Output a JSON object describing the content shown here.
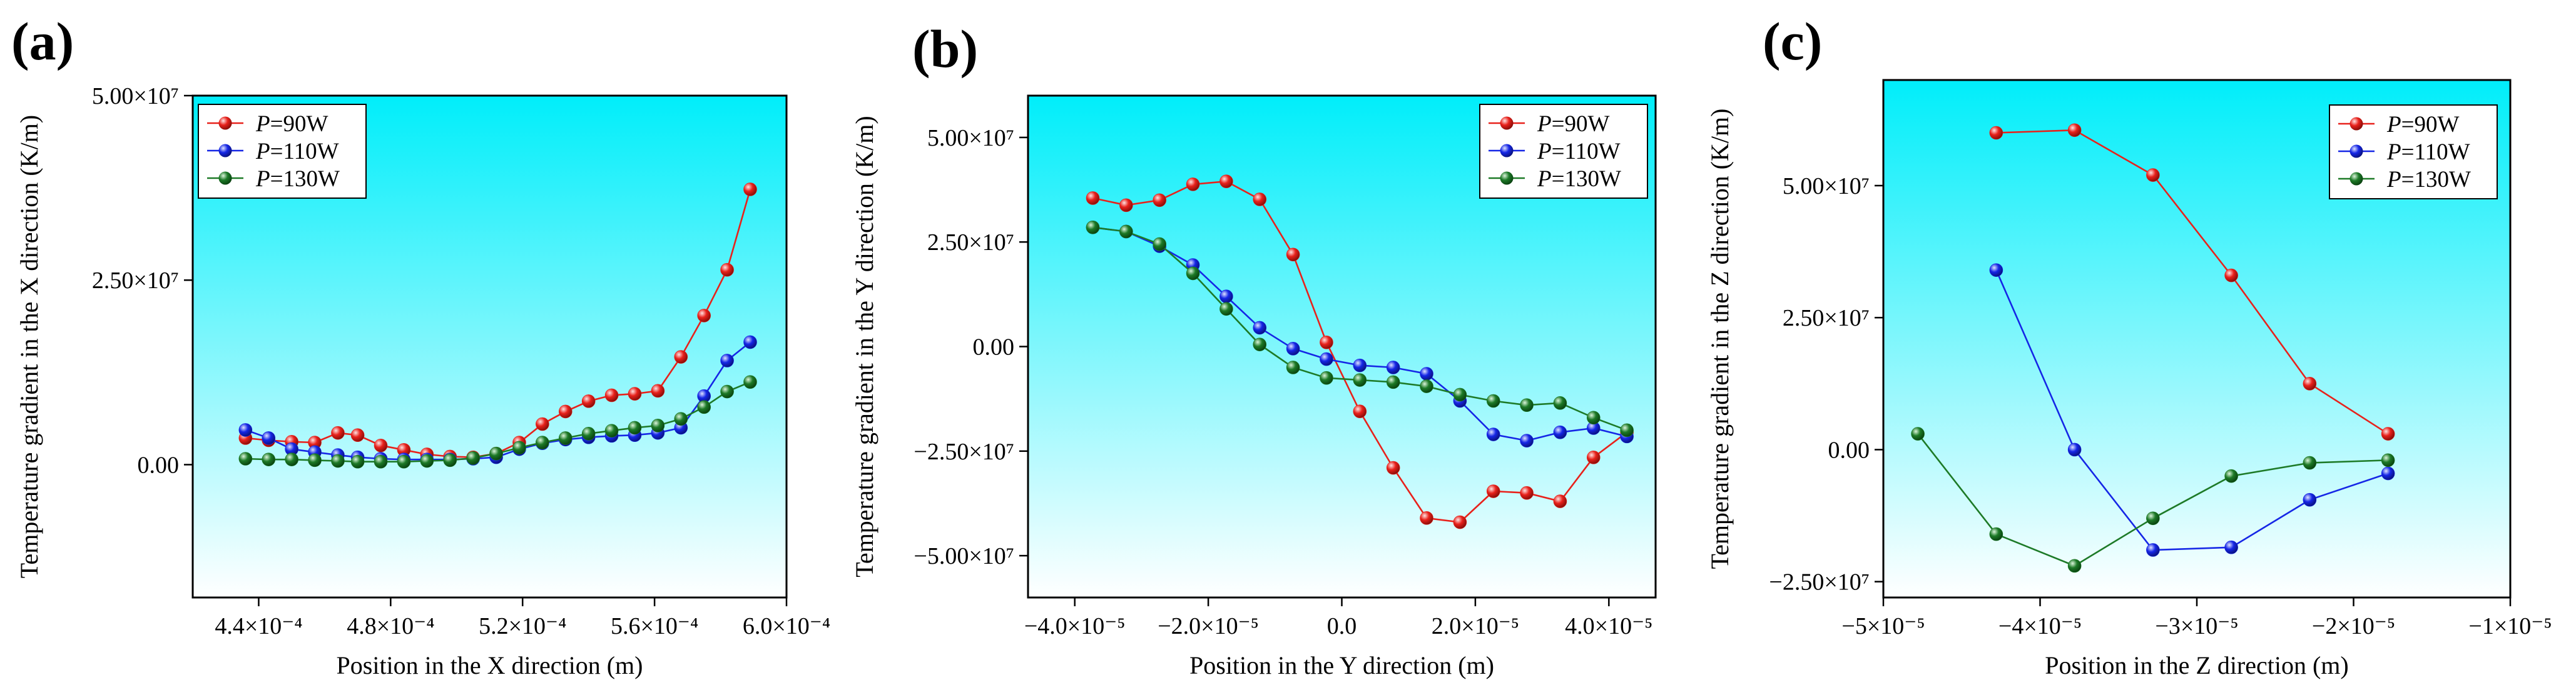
{
  "chart_data": [
    {
      "panel_label": "(a)",
      "type": "line",
      "title": "",
      "xlabel": "Position in the X direction (m)",
      "ylabel": "Temperature gradient in the X direction (K/m)",
      "xlim": [
        0.00042,
        0.0006
      ],
      "ylim": [
        -18000000,
        50000000
      ],
      "xticks": [
        0.00044,
        0.00048,
        0.00052,
        0.00056,
        0.0006
      ],
      "xtick_labels": [
        "4.4×10⁻⁴",
        "4.8×10⁻⁴",
        "5.2×10⁻⁴",
        "5.6×10⁻⁴",
        "6.0×10⁻⁴"
      ],
      "yticks": [
        0,
        25000000,
        50000000
      ],
      "ytick_labels": [
        "0.00",
        "2.50×10⁷",
        "5.00×10⁷"
      ],
      "legend_position": "top-left",
      "series": [
        {
          "name": "P=90W",
          "name_italic": "P",
          "name_rest": "=90W",
          "color": "#e8211b",
          "x": [
            0.000436,
            0.000443,
            0.00045,
            0.000457,
            0.000464,
            0.00047,
            0.000477,
            0.000484,
            0.000491,
            0.000498,
            0.000505,
            0.000512,
            0.000519,
            0.000526,
            0.000533,
            0.00054,
            0.000547,
            0.000554,
            0.000561,
            0.000568,
            0.000575,
            0.000582,
            0.000589
          ],
          "values": [
            3600000,
            3300000,
            3100000,
            3000000,
            4300000,
            4000000,
            2600000,
            2000000,
            1400000,
            1100000,
            1000000,
            1500000,
            3000000,
            5500000,
            7200000,
            8600000,
            9400000,
            9600000,
            10000000,
            14600000,
            20200000,
            26400000,
            37300000
          ]
        },
        {
          "name": "P=110W",
          "name_italic": "P",
          "name_rest": "=110W",
          "color": "#1526e6",
          "x": [
            0.000436,
            0.000443,
            0.00045,
            0.000457,
            0.000464,
            0.00047,
            0.000477,
            0.000484,
            0.000491,
            0.000498,
            0.000505,
            0.000512,
            0.000519,
            0.000526,
            0.000533,
            0.00054,
            0.000547,
            0.000554,
            0.000561,
            0.000568,
            0.000575,
            0.000582,
            0.000589
          ],
          "values": [
            4700000,
            3600000,
            2100000,
            1700000,
            1300000,
            1000000,
            800000,
            700000,
            700000,
            700000,
            800000,
            1000000,
            2100000,
            2900000,
            3400000,
            3700000,
            3900000,
            4000000,
            4300000,
            5000000,
            9300000,
            14100000,
            16600000
          ]
        },
        {
          "name": "P=130W",
          "name_italic": "P",
          "name_rest": "=130W",
          "color": "#1d7a27",
          "x": [
            0.000436,
            0.000443,
            0.00045,
            0.000457,
            0.000464,
            0.00047,
            0.000477,
            0.000484,
            0.000491,
            0.000498,
            0.000505,
            0.000512,
            0.000519,
            0.000526,
            0.000533,
            0.00054,
            0.000547,
            0.000554,
            0.000561,
            0.000568,
            0.000575,
            0.000582,
            0.000589
          ],
          "values": [
            800000,
            700000,
            700000,
            600000,
            500000,
            400000,
            400000,
            400000,
            500000,
            600000,
            900000,
            1500000,
            2300000,
            3000000,
            3600000,
            4200000,
            4600000,
            5000000,
            5300000,
            6200000,
            7800000,
            9900000,
            11200000
          ]
        }
      ]
    },
    {
      "panel_label": "(b)",
      "type": "line",
      "title": "",
      "xlabel": "Position in the Y direction (m)",
      "ylabel": "Temperature gradient in the Y direction (K/m)",
      "xlim": [
        -4.7e-05,
        4.7e-05
      ],
      "ylim": [
        -60000000,
        60000000
      ],
      "xticks": [
        -4e-05,
        -2e-05,
        0,
        2e-05,
        4e-05
      ],
      "xtick_labels": [
        "−4.0×10⁻⁵",
        "−2.0×10⁻⁵",
        "0.0",
        "2.0×10⁻⁵",
        "4.0×10⁻⁵"
      ],
      "yticks": [
        -50000000,
        -25000000,
        0,
        25000000,
        50000000
      ],
      "ytick_labels": [
        "−5.00×10⁷",
        "−2.50×10⁷",
        "0.00",
        "2.50×10⁷",
        "5.00×10⁷"
      ],
      "legend_position": "top-right",
      "series": [
        {
          "name": "P=90W",
          "name_italic": "P",
          "name_rest": "=90W",
          "color": "#e8211b",
          "x": [
            -3.73e-05,
            -3.23e-05,
            -2.73e-05,
            -2.23e-05,
            -1.73e-05,
            -1.23e-05,
            -7.3e-06,
            -2.3e-06,
            2.7e-06,
            7.7e-06,
            1.27e-05,
            1.77e-05,
            2.27e-05,
            2.77e-05,
            3.27e-05,
            3.77e-05,
            4.27e-05
          ],
          "values": [
            35500000,
            33800000,
            35000000,
            38800000,
            39500000,
            35200000,
            22000000,
            1000000,
            -15500000,
            -29000000,
            -41000000,
            -42000000,
            -34600000,
            -35000000,
            -37000000,
            -26500000,
            -20500000
          ]
        },
        {
          "name": "P=110W",
          "name_italic": "P",
          "name_rest": "=110W",
          "color": "#1526e6",
          "x": [
            -3.73e-05,
            -3.23e-05,
            -2.73e-05,
            -2.23e-05,
            -1.73e-05,
            -1.23e-05,
            -7.3e-06,
            -2.3e-06,
            2.7e-06,
            7.7e-06,
            1.27e-05,
            1.77e-05,
            2.27e-05,
            2.77e-05,
            3.27e-05,
            3.77e-05,
            4.27e-05
          ],
          "values": [
            28500000,
            27500000,
            24000000,
            19500000,
            12000000,
            4500000,
            -500000,
            -3000000,
            -4500000,
            -5000000,
            -6500000,
            -13000000,
            -21000000,
            -22500000,
            -20500000,
            -19500000,
            -21500000
          ]
        },
        {
          "name": "P=130W",
          "name_italic": "P",
          "name_rest": "=130W",
          "color": "#1d7a27",
          "x": [
            -3.73e-05,
            -3.23e-05,
            -2.73e-05,
            -2.23e-05,
            -1.73e-05,
            -1.23e-05,
            -7.3e-06,
            -2.3e-06,
            2.7e-06,
            7.7e-06,
            1.27e-05,
            1.77e-05,
            2.27e-05,
            2.77e-05,
            3.27e-05,
            3.77e-05,
            4.27e-05
          ],
          "values": [
            28500000,
            27500000,
            24500000,
            17500000,
            9000000,
            500000,
            -5000000,
            -7500000,
            -8000000,
            -8500000,
            -9500000,
            -11500000,
            -13000000,
            -14000000,
            -13500000,
            -17000000,
            -20000000
          ]
        }
      ]
    },
    {
      "panel_label": "(c)",
      "type": "line",
      "title": "",
      "xlabel": "Position in the Z direction (m)",
      "ylabel": "Temperature gradient in the Z direction (K/m)",
      "xlim": [
        -5e-05,
        -1e-05
      ],
      "ylim": [
        -28000000,
        70000000
      ],
      "xticks": [
        -5e-05,
        -4e-05,
        -3e-05,
        -2e-05,
        -1e-05
      ],
      "xtick_labels": [
        "−5×10⁻⁵",
        "−4×10⁻⁵",
        "−3×10⁻⁵",
        "−2×10⁻⁵",
        "−1×10⁻⁵"
      ],
      "yticks": [
        -25000000,
        0,
        25000000,
        50000000
      ],
      "ytick_labels": [
        "−2.50×10⁷",
        "0.00",
        "2.50×10⁷",
        "5.00×10⁷"
      ],
      "legend_position": "top-right",
      "series": [
        {
          "name": "P=90W",
          "name_italic": "P",
          "name_rest": "=90W",
          "color": "#e8211b",
          "x": [
            -4.28e-05,
            -3.78e-05,
            -3.28e-05,
            -2.78e-05,
            -2.28e-05,
            -1.78e-05
          ],
          "values": [
            60000000,
            60500000,
            52000000,
            33000000,
            12500000,
            3000000
          ]
        },
        {
          "name": "P=110W",
          "name_italic": "P",
          "name_rest": "=110W",
          "color": "#1526e6",
          "x": [
            -4.28e-05,
            -3.78e-05,
            -3.28e-05,
            -2.78e-05,
            -2.28e-05,
            -1.78e-05
          ],
          "values": [
            34000000,
            0,
            -19000000,
            -18500000,
            -9500000,
            -4500000
          ]
        },
        {
          "name": "P=130W",
          "name_italic": "P",
          "name_rest": "=130W",
          "color": "#1d7a27",
          "x": [
            -4.78e-05,
            -4.28e-05,
            -3.78e-05,
            -3.28e-05,
            -2.78e-05,
            -2.28e-05,
            -1.78e-05
          ],
          "values": [
            3000000,
            -16000000,
            -22000000,
            -13000000,
            -5000000,
            -2500000,
            -2000000
          ]
        }
      ]
    }
  ]
}
